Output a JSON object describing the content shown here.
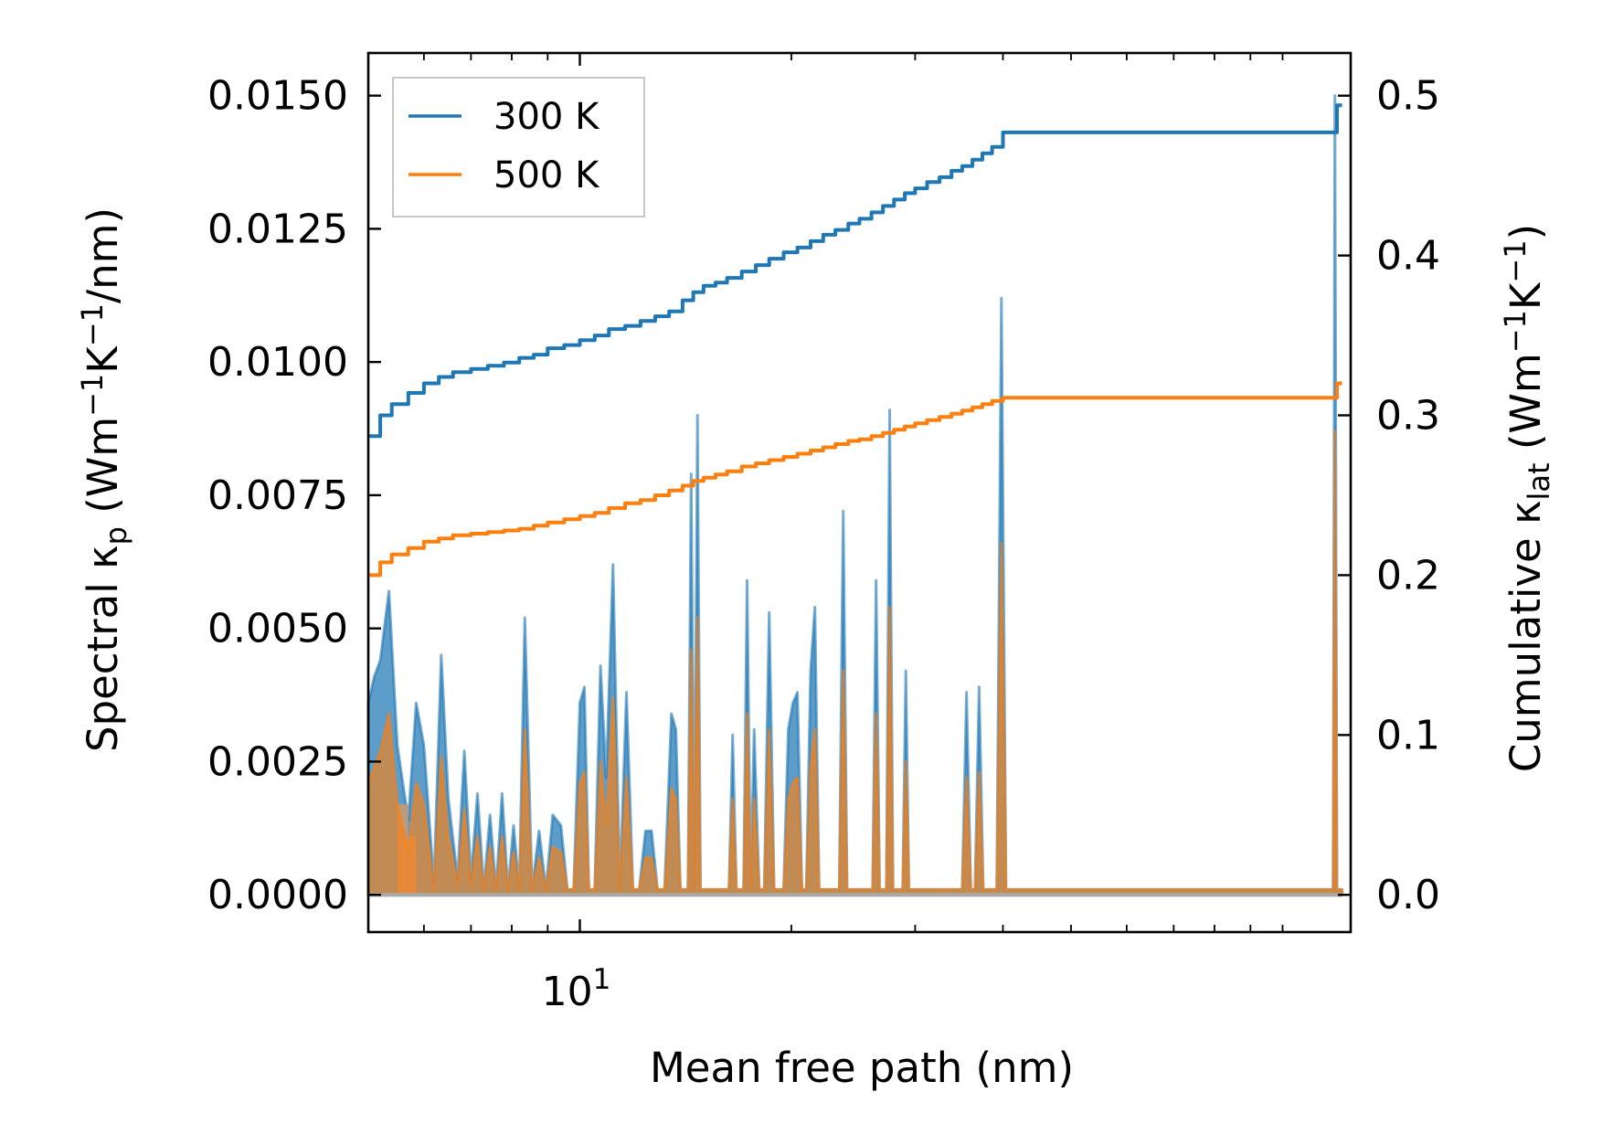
{
  "chart_data": {
    "type": "line+area",
    "xscale": "log",
    "xlabel": "Mean free path (nm)",
    "xlim": [
      5.0,
      125.0
    ],
    "x_tick_major": [
      {
        "value": 10,
        "base": "10",
        "exp": "1"
      }
    ],
    "x_tick_minor": [
      5,
      6,
      7,
      8,
      9,
      20,
      30,
      40,
      50,
      60,
      70,
      80,
      90,
      100
    ],
    "ylabel_left": {
      "main": "Spectral κ",
      "sub": "p",
      "units_open": " (Wm",
      "sup1": "−1",
      "k": "K",
      "sup2": "−1",
      "units_close": "/nm)"
    },
    "ylim_left": [
      -0.0007,
      0.0158
    ],
    "yticks_left": [
      "0.0000",
      "0.0025",
      "0.0050",
      "0.0075",
      "0.0100",
      "0.0125",
      "0.0150"
    ],
    "ylabel_right": {
      "main": "Cumulative κ",
      "sub": "lat",
      "units_open": " (Wm",
      "sup1": "−1",
      "k": "K",
      "sup2": "−1",
      "units_close": ")"
    },
    "ylim_right": [
      -0.0233,
      0.5267
    ],
    "yticks_right": [
      "0.0",
      "0.1",
      "0.2",
      "0.3",
      "0.4",
      "0.5"
    ],
    "legend": {
      "placement": "top-left",
      "entries": [
        {
          "label": "300 K",
          "color": "#1f77b4"
        },
        {
          "label": "500 K",
          "color": "#ff7f0e"
        }
      ]
    },
    "series": [
      {
        "name": "300 K",
        "color": "#1f77b4",
        "axis": "right",
        "kind": "cumulative-line",
        "x": [
          5.0,
          5.2,
          5.4,
          5.7,
          6.0,
          6.3,
          6.6,
          7.0,
          7.4,
          7.8,
          8.2,
          8.6,
          9.0,
          9.5,
          10.0,
          10.5,
          11.0,
          11.6,
          12.2,
          12.8,
          13.4,
          14.0,
          14.5,
          15.0,
          15.6,
          16.2,
          17.0,
          17.8,
          18.6,
          19.5,
          20.4,
          21.3,
          22.2,
          23.1,
          24.1,
          25.0,
          26.0,
          27.0,
          28.0,
          29.0,
          30.0,
          31.2,
          32.5,
          33.8,
          35.0,
          36.2,
          37.4,
          38.6,
          40.0,
          60.0,
          80.0,
          100.0,
          118.5,
          119.5,
          121.5
        ],
        "y": [
          0.287,
          0.3,
          0.307,
          0.314,
          0.32,
          0.324,
          0.327,
          0.329,
          0.331,
          0.333,
          0.336,
          0.338,
          0.342,
          0.344,
          0.347,
          0.35,
          0.354,
          0.356,
          0.359,
          0.362,
          0.365,
          0.372,
          0.377,
          0.381,
          0.383,
          0.386,
          0.39,
          0.394,
          0.398,
          0.402,
          0.405,
          0.409,
          0.413,
          0.416,
          0.42,
          0.423,
          0.427,
          0.431,
          0.435,
          0.439,
          0.442,
          0.446,
          0.449,
          0.453,
          0.456,
          0.46,
          0.464,
          0.468,
          0.477,
          0.477,
          0.477,
          0.477,
          0.477,
          0.494,
          0.494
        ]
      },
      {
        "name": "500 K",
        "color": "#ff7f0e",
        "axis": "right",
        "kind": "cumulative-line",
        "x": [
          5.0,
          5.2,
          5.4,
          5.7,
          6.0,
          6.3,
          6.6,
          7.0,
          7.4,
          7.8,
          8.2,
          8.6,
          9.0,
          9.5,
          10.0,
          10.5,
          11.0,
          11.6,
          12.2,
          12.8,
          13.4,
          14.0,
          14.5,
          15.0,
          15.6,
          16.2,
          17.0,
          17.8,
          18.6,
          19.5,
          20.4,
          21.3,
          22.2,
          23.1,
          24.1,
          25.0,
          26.0,
          27.0,
          28.0,
          29.0,
          30.0,
          31.2,
          32.5,
          33.8,
          35.0,
          36.2,
          37.4,
          38.6,
          40.0,
          60.0,
          80.0,
          100.0,
          118.5,
          119.5,
          121.5
        ],
        "y": [
          0.2,
          0.208,
          0.213,
          0.217,
          0.221,
          0.223,
          0.225,
          0.226,
          0.227,
          0.228,
          0.229,
          0.231,
          0.233,
          0.235,
          0.237,
          0.239,
          0.242,
          0.245,
          0.247,
          0.25,
          0.253,
          0.256,
          0.259,
          0.261,
          0.263,
          0.265,
          0.268,
          0.27,
          0.272,
          0.274,
          0.276,
          0.278,
          0.28,
          0.282,
          0.284,
          0.285,
          0.287,
          0.289,
          0.291,
          0.293,
          0.295,
          0.297,
          0.299,
          0.301,
          0.303,
          0.305,
          0.307,
          0.309,
          0.311,
          0.311,
          0.311,
          0.311,
          0.311,
          0.32,
          0.32
        ]
      },
      {
        "name": "300 K spectral",
        "color": "#1f77b4",
        "axis": "left",
        "kind": "filled-area",
        "x": [
          5.0,
          5.1,
          5.2,
          5.35,
          5.5,
          5.7,
          5.85,
          6.0,
          6.2,
          6.35,
          6.5,
          6.7,
          6.85,
          7.0,
          7.15,
          7.3,
          7.45,
          7.6,
          7.75,
          7.9,
          8.05,
          8.2,
          8.35,
          8.55,
          8.75,
          8.95,
          9.15,
          9.4,
          9.6,
          9.8,
          10.0,
          10.15,
          10.3,
          10.5,
          10.7,
          10.9,
          11.15,
          11.4,
          11.65,
          11.9,
          12.15,
          12.4,
          12.65,
          12.9,
          13.2,
          13.5,
          13.7,
          13.9,
          14.1,
          14.25,
          14.4,
          14.55,
          14.7,
          14.85,
          15.0,
          15.5,
          16.0,
          16.3,
          16.5,
          16.7,
          16.9,
          17.1,
          17.3,
          17.5,
          17.7,
          18.0,
          18.3,
          18.6,
          18.9,
          19.2,
          19.5,
          19.8,
          20.1,
          20.4,
          20.7,
          21.0,
          21.3,
          21.6,
          21.9,
          22.2,
          22.5,
          22.8,
          23.1,
          23.4,
          23.7,
          24.0,
          24.3,
          24.6,
          24.9,
          25.2,
          25.5,
          25.8,
          26.1,
          26.4,
          26.7,
          27.0,
          27.3,
          27.6,
          27.9,
          28.2,
          28.5,
          28.8,
          29.1,
          29.4,
          29.7,
          30.0,
          30.4,
          30.8,
          31.2,
          31.6,
          32.0,
          32.5,
          33.0,
          33.5,
          34.0,
          34.5,
          35.0,
          35.5,
          36.0,
          36.5,
          37.0,
          37.5,
          38.0,
          38.6,
          39.2,
          39.8,
          40.4,
          41.0,
          60.0,
          80.0,
          100.0,
          117.0,
          118.0,
          118.7,
          119.5,
          120.3,
          121.5
        ],
        "y": [
          0.0036,
          0.0041,
          0.0044,
          0.0057,
          0.0028,
          0.0014,
          0.0036,
          0.0028,
          0.0002,
          0.0045,
          0.0018,
          0.0003,
          0.0027,
          0.0003,
          0.0019,
          0.0001,
          0.0015,
          0.0001,
          0.0019,
          0.0001,
          0.0013,
          0.0001,
          0.0052,
          0.0001,
          0.0012,
          0.0001,
          0.0015,
          0.0013,
          0.0001,
          0.0001,
          0.0036,
          0.0039,
          0.0001,
          0.0001,
          0.0043,
          0.0022,
          0.0062,
          0.0001,
          0.0038,
          0.0001,
          0.0001,
          0.0012,
          0.0012,
          0.0001,
          0.0001,
          0.0034,
          0.0031,
          0.0001,
          0.0001,
          0.0001,
          0.0079,
          0.0001,
          0.009,
          0.0001,
          0.0001,
          0.0001,
          0.0001,
          0.0001,
          0.003,
          0.0001,
          0.0001,
          0.0001,
          0.0059,
          0.0001,
          0.0031,
          0.0001,
          0.0001,
          0.0053,
          0.0001,
          0.0001,
          0.0001,
          0.0031,
          0.0036,
          0.0038,
          0.0001,
          0.0001,
          0.0042,
          0.0054,
          0.0001,
          0.0001,
          0.0001,
          0.0001,
          0.0001,
          0.0001,
          0.0072,
          0.0001,
          0.0001,
          0.0001,
          0.0001,
          0.0001,
          0.0001,
          0.0001,
          0.0001,
          0.0059,
          0.0001,
          0.0001,
          0.0001,
          0.0091,
          0.0001,
          0.0001,
          0.0001,
          0.0001,
          0.0042,
          0.0001,
          0.0001,
          0.0001,
          0.0001,
          0.0001,
          0.0001,
          0.0001,
          0.0001,
          0.0001,
          0.0001,
          0.0001,
          0.0001,
          0.0001,
          0.0001,
          0.0038,
          0.0001,
          0.0001,
          0.0039,
          0.0001,
          0.0001,
          0.0001,
          0.0001,
          0.0112,
          0.0001,
          0.0001,
          0.0001,
          0.0001,
          0.0001,
          0.0001,
          0.0001,
          0.015,
          0.0001,
          0.0001,
          0.0001
        ],
        "bands": [
          [
            5.5,
            5.7,
            0.0017
          ],
          [
            5.7,
            5.85,
            0.0011
          ]
        ]
      },
      {
        "name": "500 K spectral",
        "color": "#ff7f0e",
        "axis": "left",
        "kind": "filled-area",
        "x": [
          5.0,
          5.1,
          5.2,
          5.35,
          5.5,
          5.7,
          5.85,
          6.0,
          6.2,
          6.35,
          6.5,
          6.7,
          6.85,
          7.0,
          7.15,
          7.3,
          7.45,
          7.6,
          7.75,
          7.9,
          8.05,
          8.2,
          8.35,
          8.55,
          8.75,
          8.95,
          9.15,
          9.4,
          9.6,
          9.8,
          10.0,
          10.15,
          10.3,
          10.5,
          10.7,
          10.9,
          11.15,
          11.4,
          11.65,
          11.9,
          12.15,
          12.4,
          12.65,
          12.9,
          13.2,
          13.5,
          13.7,
          13.9,
          14.1,
          14.25,
          14.4,
          14.55,
          14.7,
          14.85,
          15.0,
          15.5,
          16.0,
          16.3,
          16.5,
          16.7,
          16.9,
          17.1,
          17.3,
          17.5,
          17.7,
          18.0,
          18.3,
          18.6,
          18.9,
          19.2,
          19.5,
          19.8,
          20.1,
          20.4,
          20.7,
          21.0,
          21.3,
          21.6,
          21.9,
          22.2,
          22.5,
          22.8,
          23.1,
          23.4,
          23.7,
          24.0,
          24.3,
          24.6,
          24.9,
          25.2,
          25.5,
          25.8,
          26.1,
          26.4,
          26.7,
          27.0,
          27.3,
          27.6,
          27.9,
          28.2,
          28.5,
          28.8,
          29.1,
          29.4,
          29.7,
          30.0,
          30.4,
          30.8,
          31.2,
          31.6,
          32.0,
          32.5,
          33.0,
          33.5,
          34.0,
          34.5,
          35.0,
          35.5,
          36.0,
          36.5,
          37.0,
          37.5,
          38.0,
          38.6,
          39.2,
          39.8,
          40.4,
          41.0,
          60.0,
          80.0,
          100.0,
          117.0,
          118.0,
          118.7,
          119.5,
          120.3,
          121.5
        ],
        "y": [
          0.0021,
          0.0024,
          0.0027,
          0.0034,
          0.0017,
          0.0008,
          0.0021,
          0.0017,
          0.0001,
          0.0026,
          0.0011,
          0.0002,
          0.0016,
          0.0002,
          0.0011,
          0.0001,
          0.0009,
          0.0001,
          0.0011,
          0.0001,
          0.0008,
          0.0001,
          0.0031,
          0.0001,
          0.0007,
          0.0001,
          0.0009,
          0.0008,
          0.0001,
          0.0001,
          0.0021,
          0.0023,
          0.0001,
          0.0001,
          0.0025,
          0.0013,
          0.0037,
          0.0001,
          0.0022,
          0.0001,
          0.0001,
          0.0007,
          0.0007,
          0.0001,
          0.0001,
          0.002,
          0.0018,
          0.0001,
          0.0001,
          0.0001,
          0.0046,
          0.0001,
          0.0052,
          0.0001,
          0.0001,
          0.0001,
          0.0001,
          0.0001,
          0.0018,
          0.0001,
          0.0001,
          0.0001,
          0.0034,
          0.0001,
          0.0018,
          0.0001,
          0.0001,
          0.0031,
          0.0001,
          0.0001,
          0.0001,
          0.0018,
          0.0021,
          0.0022,
          0.0001,
          0.0001,
          0.0024,
          0.0031,
          0.0001,
          0.0001,
          0.0001,
          0.0001,
          0.0001,
          0.0001,
          0.0042,
          0.0001,
          0.0001,
          0.0001,
          0.0001,
          0.0001,
          0.0001,
          0.0001,
          0.0001,
          0.0034,
          0.0001,
          0.0001,
          0.0001,
          0.0054,
          0.0001,
          0.0001,
          0.0001,
          0.0001,
          0.0025,
          0.0001,
          0.0001,
          0.0001,
          0.0001,
          0.0001,
          0.0001,
          0.0001,
          0.0001,
          0.0001,
          0.0001,
          0.0001,
          0.0001,
          0.0001,
          0.0001,
          0.0022,
          0.0001,
          0.0001,
          0.0023,
          0.0001,
          0.0001,
          0.0001,
          0.0001,
          0.0066,
          0.0001,
          0.0001,
          0.0001,
          0.0001,
          0.0001,
          0.0001,
          0.0001,
          0.0087,
          0.0001,
          0.0001,
          0.0001
        ]
      }
    ]
  }
}
